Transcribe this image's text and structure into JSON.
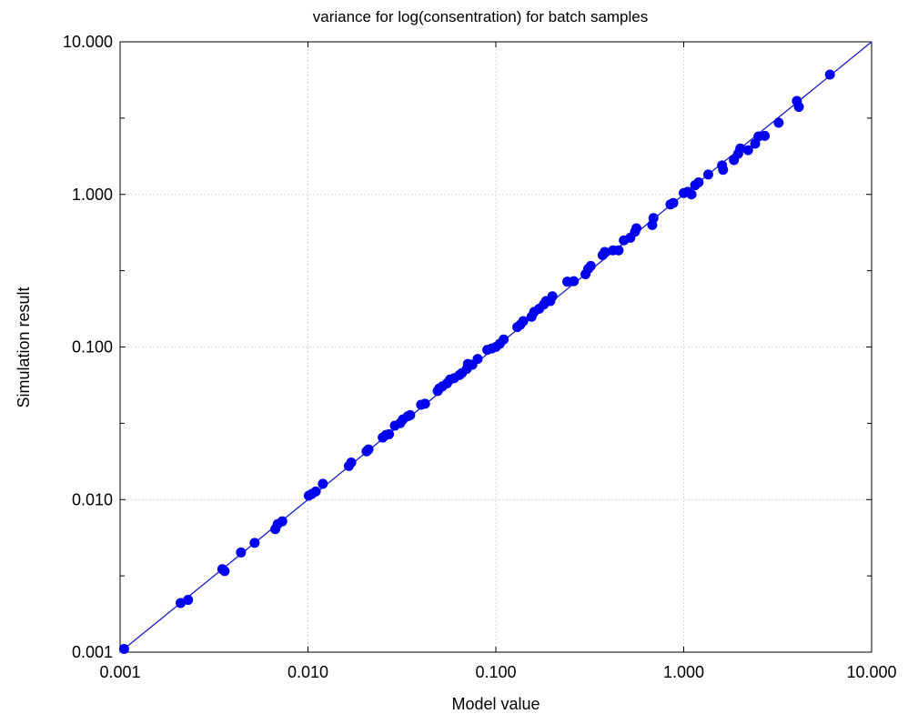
{
  "chart_data": {
    "type": "scatter",
    "title": "variance for log(consentration) for batch samples",
    "xlabel": "Model value",
    "ylabel": "Simulation result",
    "x_scale": "log",
    "y_scale": "log",
    "xlim": [
      0.001,
      10
    ],
    "ylim": [
      0.001,
      10
    ],
    "x_ticks": [
      0.001,
      0.01,
      0.1,
      1,
      10
    ],
    "y_ticks": [
      0.001,
      0.01,
      0.1,
      1,
      10
    ],
    "x_tick_labels": [
      "0.001",
      "0.010",
      "0.100",
      "1.000",
      "10.000"
    ],
    "y_tick_labels": [
      "0.001",
      "0.010",
      "0.100",
      "1.000",
      "10.000"
    ],
    "grid": true,
    "marker_color": "#0000ee",
    "line_color": "#1a1acc",
    "reference_line": {
      "from": [
        0.001,
        0.001
      ],
      "to": [
        10,
        10
      ]
    },
    "points": [
      [
        0.00105,
        0.00105
      ],
      [
        0.0021,
        0.0021
      ],
      [
        0.0023,
        0.0022
      ],
      [
        0.0035,
        0.0035
      ],
      [
        0.0036,
        0.0034
      ],
      [
        0.0044,
        0.0045
      ],
      [
        0.0052,
        0.0052
      ],
      [
        0.0067,
        0.0064
      ],
      [
        0.0069,
        0.0069
      ],
      [
        0.0073,
        0.0072
      ],
      [
        0.0101,
        0.0106
      ],
      [
        0.0105,
        0.0109
      ],
      [
        0.011,
        0.0113
      ],
      [
        0.012,
        0.0127
      ],
      [
        0.0165,
        0.0166
      ],
      [
        0.017,
        0.0175
      ],
      [
        0.0205,
        0.0207
      ],
      [
        0.021,
        0.0213
      ],
      [
        0.025,
        0.0255
      ],
      [
        0.026,
        0.0265
      ],
      [
        0.027,
        0.0268
      ],
      [
        0.029,
        0.0305
      ],
      [
        0.031,
        0.0317
      ],
      [
        0.032,
        0.0335
      ],
      [
        0.034,
        0.0352
      ],
      [
        0.035,
        0.0358
      ],
      [
        0.04,
        0.0418
      ],
      [
        0.042,
        0.0425
      ],
      [
        0.049,
        0.0515
      ],
      [
        0.05,
        0.0535
      ],
      [
        0.052,
        0.0552
      ],
      [
        0.055,
        0.0578
      ],
      [
        0.057,
        0.0612
      ],
      [
        0.06,
        0.0625
      ],
      [
        0.064,
        0.0655
      ],
      [
        0.066,
        0.0675
      ],
      [
        0.07,
        0.0718
      ],
      [
        0.071,
        0.0775
      ],
      [
        0.075,
        0.0765
      ],
      [
        0.08,
        0.0835
      ],
      [
        0.09,
        0.0958
      ],
      [
        0.095,
        0.0978
      ],
      [
        0.1,
        0.1
      ],
      [
        0.105,
        0.105
      ],
      [
        0.11,
        0.112
      ],
      [
        0.13,
        0.135
      ],
      [
        0.135,
        0.14
      ],
      [
        0.14,
        0.148
      ],
      [
        0.155,
        0.158
      ],
      [
        0.16,
        0.17
      ],
      [
        0.17,
        0.178
      ],
      [
        0.18,
        0.19
      ],
      [
        0.185,
        0.2
      ],
      [
        0.195,
        0.2
      ],
      [
        0.2,
        0.215
      ],
      [
        0.24,
        0.268
      ],
      [
        0.26,
        0.27
      ],
      [
        0.3,
        0.3
      ],
      [
        0.31,
        0.325
      ],
      [
        0.32,
        0.34
      ],
      [
        0.37,
        0.4
      ],
      [
        0.38,
        0.42
      ],
      [
        0.42,
        0.43
      ],
      [
        0.45,
        0.43
      ],
      [
        0.48,
        0.5
      ],
      [
        0.52,
        0.52
      ],
      [
        0.55,
        0.57
      ],
      [
        0.56,
        0.6
      ],
      [
        0.68,
        0.63
      ],
      [
        0.69,
        0.7
      ],
      [
        0.85,
        0.86
      ],
      [
        0.88,
        0.88
      ],
      [
        1.0,
        1.02
      ],
      [
        1.05,
        1.04
      ],
      [
        1.1,
        1.0
      ],
      [
        1.15,
        1.15
      ],
      [
        1.2,
        1.2
      ],
      [
        1.35,
        1.35
      ],
      [
        1.6,
        1.55
      ],
      [
        1.62,
        1.45
      ],
      [
        1.85,
        1.68
      ],
      [
        1.95,
        1.85
      ],
      [
        2.0,
        2.0
      ],
      [
        2.2,
        1.95
      ],
      [
        2.4,
        2.15
      ],
      [
        2.5,
        2.4
      ],
      [
        2.7,
        2.42
      ],
      [
        3.2,
        2.95
      ],
      [
        4.0,
        4.1
      ],
      [
        4.1,
        3.75
      ],
      [
        6.0,
        6.1
      ]
    ]
  }
}
